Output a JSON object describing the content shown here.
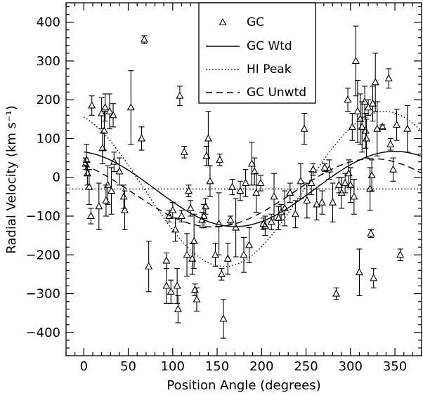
{
  "chart_data": {
    "type": "scatter",
    "xlabel": "Position Angle (degrees)",
    "ylabel": "Radial Velocity (km s⁻¹)",
    "xlim": [
      -20,
      380
    ],
    "ylim": [
      -460,
      450
    ],
    "x_ticks": [
      0,
      50,
      100,
      150,
      200,
      250,
      300,
      350
    ],
    "y_ticks": [
      -400,
      -300,
      -200,
      -100,
      0,
      100,
      200,
      300,
      400
    ],
    "legend": {
      "position": "top-center",
      "entries": [
        {
          "label": "GC",
          "style": "triangle"
        },
        {
          "label": "GC Wtd",
          "style": "solid"
        },
        {
          "label": "HI Peak",
          "style": "dotted"
        },
        {
          "label": "GC Unwtd",
          "style": "dashed"
        }
      ]
    },
    "horizontal_line": {
      "y": -30,
      "style": "dotted"
    },
    "models": [
      {
        "name": "GC Wtd",
        "style": "solid",
        "offset": -30,
        "amplitude": 97,
        "phase_deg": 350
      },
      {
        "name": "HI Peak",
        "style": "dotted",
        "offset": -30,
        "amplitude": 200,
        "phase_deg": 338
      },
      {
        "name": "GC Unwtd",
        "style": "dashed",
        "offset": -40,
        "amplitude": 88,
        "phase_deg": 325
      }
    ],
    "series": [
      {
        "name": "GC",
        "points": [
          {
            "x": 2,
            "y": 35,
            "err": 15
          },
          {
            "x": 3,
            "y": 45,
            "err": 40
          },
          {
            "x": 4,
            "y": 10,
            "err": 30
          },
          {
            "x": 6,
            "y": -25,
            "err": 45
          },
          {
            "x": 8,
            "y": -100,
            "err": 20
          },
          {
            "x": 9,
            "y": 185,
            "err": 25
          },
          {
            "x": 17,
            "y": -75,
            "err": 60
          },
          {
            "x": 20,
            "y": 165,
            "err": 40
          },
          {
            "x": 21,
            "y": 75,
            "err": 40
          },
          {
            "x": 23,
            "y": 120,
            "err": 50
          },
          {
            "x": 24,
            "y": 180,
            "err": 35
          },
          {
            "x": 25,
            "y": -60,
            "err": 40
          },
          {
            "x": 27,
            "y": -20,
            "err": 50
          },
          {
            "x": 29,
            "y": 170,
            "err": 45
          },
          {
            "x": 31,
            "y": -35,
            "err": 60
          },
          {
            "x": 33,
            "y": 160,
            "err": 30
          },
          {
            "x": 34,
            "y": 40,
            "err": 25
          },
          {
            "x": 40,
            "y": 15,
            "err": 35
          },
          {
            "x": 45,
            "y": -50,
            "err": 30
          },
          {
            "x": 46,
            "y": -85,
            "err": 50
          },
          {
            "x": 53,
            "y": 180,
            "err": 95
          },
          {
            "x": 65,
            "y": 100,
            "err": 30
          },
          {
            "x": 68,
            "y": 355,
            "err": 10
          },
          {
            "x": 73,
            "y": -230,
            "err": 65
          },
          {
            "x": 93,
            "y": -215,
            "err": 20
          },
          {
            "x": 93,
            "y": -280,
            "err": 45
          },
          {
            "x": 96,
            "y": -100,
            "err": 15
          },
          {
            "x": 98,
            "y": -295,
            "err": 30
          },
          {
            "x": 100,
            "y": -85,
            "err": 20
          },
          {
            "x": 103,
            "y": -135,
            "err": 30
          },
          {
            "x": 105,
            "y": -280,
            "err": 45
          },
          {
            "x": 106,
            "y": -340,
            "err": 35
          },
          {
            "x": 108,
            "y": 210,
            "err": 25
          },
          {
            "x": 110,
            "y": -100,
            "err": 15
          },
          {
            "x": 113,
            "y": 65,
            "err": 15
          },
          {
            "x": 116,
            "y": -200,
            "err": 55
          },
          {
            "x": 118,
            "y": -35,
            "err": 15
          },
          {
            "x": 120,
            "y": -80,
            "err": 20
          },
          {
            "x": 122,
            "y": -210,
            "err": 40
          },
          {
            "x": 124,
            "y": -165,
            "err": 70
          },
          {
            "x": 125,
            "y": -290,
            "err": 15
          },
          {
            "x": 127,
            "y": -315,
            "err": 30
          },
          {
            "x": 133,
            "y": -110,
            "err": 20
          },
          {
            "x": 135,
            "y": -100,
            "err": 30
          },
          {
            "x": 137,
            "y": -75,
            "err": 20
          },
          {
            "x": 138,
            "y": 55,
            "err": 25
          },
          {
            "x": 140,
            "y": 100,
            "err": 70
          },
          {
            "x": 142,
            "y": -10,
            "err": 40
          },
          {
            "x": 148,
            "y": -200,
            "err": 30
          },
          {
            "x": 152,
            "y": -120,
            "err": 80
          },
          {
            "x": 153,
            "y": 45,
            "err": 15
          },
          {
            "x": 155,
            "y": -250,
            "err": 15
          },
          {
            "x": 157,
            "y": -365,
            "err": 50
          },
          {
            "x": 162,
            "y": -210,
            "err": 40
          },
          {
            "x": 165,
            "y": -110,
            "err": 10
          },
          {
            "x": 167,
            "y": -25,
            "err": 20
          },
          {
            "x": 171,
            "y": -130,
            "err": 75
          },
          {
            "x": 176,
            "y": -35,
            "err": 25
          },
          {
            "x": 180,
            "y": -200,
            "err": 45
          },
          {
            "x": 182,
            "y": -15,
            "err": 35
          },
          {
            "x": 186,
            "y": -175,
            "err": 45
          },
          {
            "x": 189,
            "y": 35,
            "err": 55
          },
          {
            "x": 192,
            "y": 15,
            "err": 35
          },
          {
            "x": 194,
            "y": -40,
            "err": 50
          },
          {
            "x": 199,
            "y": -15,
            "err": 20
          },
          {
            "x": 202,
            "y": -120,
            "err": 15
          },
          {
            "x": 204,
            "y": -125,
            "err": 25
          },
          {
            "x": 211,
            "y": -115,
            "err": 20
          },
          {
            "x": 214,
            "y": -50,
            "err": 60
          },
          {
            "x": 219,
            "y": -105,
            "err": 30
          },
          {
            "x": 222,
            "y": -90,
            "err": 20
          },
          {
            "x": 226,
            "y": -80,
            "err": 45
          },
          {
            "x": 232,
            "y": -40,
            "err": 25
          },
          {
            "x": 238,
            "y": -95,
            "err": 35
          },
          {
            "x": 244,
            "y": -10,
            "err": 45
          },
          {
            "x": 248,
            "y": 125,
            "err": 40
          },
          {
            "x": 251,
            "y": -60,
            "err": 45
          },
          {
            "x": 256,
            "y": -15,
            "err": 30
          },
          {
            "x": 258,
            "y": 20,
            "err": 15
          },
          {
            "x": 262,
            "y": -70,
            "err": 40
          },
          {
            "x": 268,
            "y": -65,
            "err": 30
          },
          {
            "x": 271,
            "y": 25,
            "err": 10
          },
          {
            "x": 276,
            "y": 20,
            "err": 25
          },
          {
            "x": 280,
            "y": -65,
            "err": 50
          },
          {
            "x": 284,
            "y": -300,
            "err": 15
          },
          {
            "x": 287,
            "y": -20,
            "err": 20
          },
          {
            "x": 290,
            "y": -40,
            "err": 40
          },
          {
            "x": 294,
            "y": -15,
            "err": 25
          },
          {
            "x": 297,
            "y": 200,
            "err": 30
          },
          {
            "x": 298,
            "y": 10,
            "err": 35
          },
          {
            "x": 300,
            "y": -20,
            "err": 45
          },
          {
            "x": 302,
            "y": 130,
            "err": 35
          },
          {
            "x": 304,
            "y": -50,
            "err": 45
          },
          {
            "x": 306,
            "y": 300,
            "err": 90
          },
          {
            "x": 308,
            "y": 170,
            "err": 80
          },
          {
            "x": 310,
            "y": -245,
            "err": 60
          },
          {
            "x": 311,
            "y": 150,
            "err": 65
          },
          {
            "x": 313,
            "y": 130,
            "err": 65
          },
          {
            "x": 316,
            "y": 195,
            "err": 40
          },
          {
            "x": 317,
            "y": 120,
            "err": 45
          },
          {
            "x": 318,
            "y": 100,
            "err": 50
          },
          {
            "x": 320,
            "y": 180,
            "err": 20
          },
          {
            "x": 322,
            "y": -30,
            "err": 55
          },
          {
            "x": 323,
            "y": -145,
            "err": 10
          },
          {
            "x": 324,
            "y": 5,
            "err": 40
          },
          {
            "x": 325,
            "y": 190,
            "err": 45
          },
          {
            "x": 326,
            "y": -260,
            "err": 25
          },
          {
            "x": 328,
            "y": 245,
            "err": 75
          },
          {
            "x": 330,
            "y": 125,
            "err": 70
          },
          {
            "x": 336,
            "y": 130,
            "err": 5
          },
          {
            "x": 343,
            "y": 255,
            "err": 25
          },
          {
            "x": 345,
            "y": 85,
            "err": 15
          },
          {
            "x": 348,
            "y": 20,
            "err": 30
          },
          {
            "x": 352,
            "y": 135,
            "err": 40
          },
          {
            "x": 356,
            "y": -200,
            "err": 15
          },
          {
            "x": 364,
            "y": 125,
            "err": 60
          }
        ]
      }
    ]
  }
}
